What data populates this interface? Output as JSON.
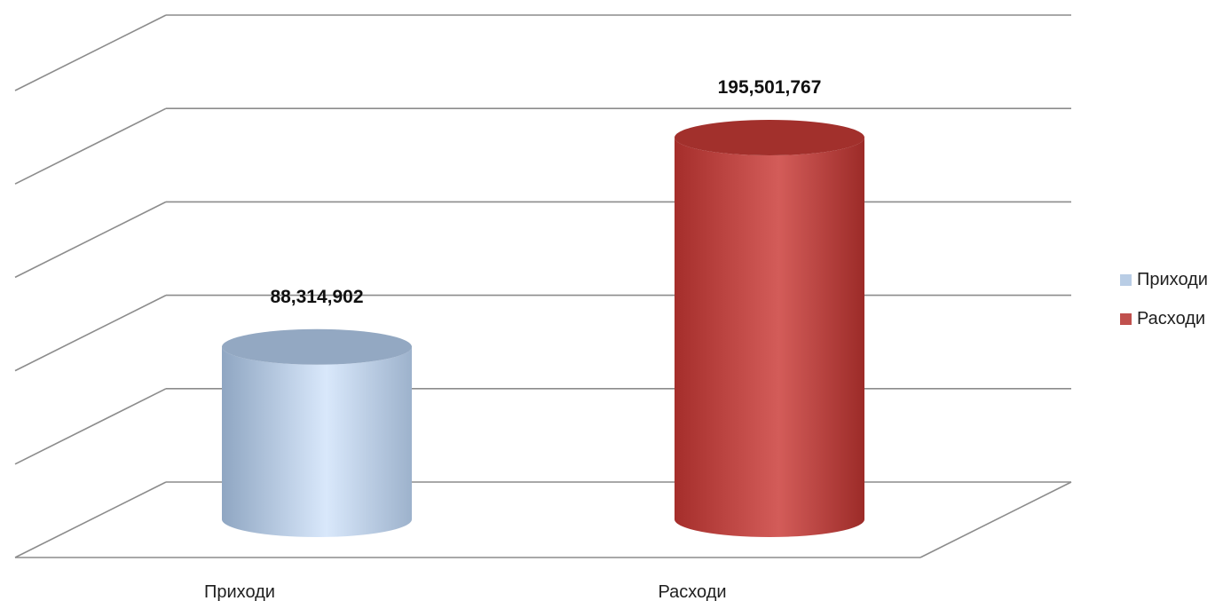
{
  "chart_data": {
    "type": "bar",
    "subtype": "3d-cylinder",
    "categories": [
      "Приходи",
      "Расходи"
    ],
    "values": [
      88314902,
      195501767
    ],
    "value_labels": [
      "88,314,902",
      "195,501,767"
    ],
    "series": [
      {
        "name": "Приходи",
        "values": [
          88314902,
          null
        ],
        "color": "#b9cde5"
      },
      {
        "name": "Расходи",
        "values": [
          null,
          195501767
        ],
        "color": "#c0504d"
      }
    ],
    "title": "",
    "xlabel": "",
    "ylabel": "",
    "ylim": [
      0,
      250000000
    ],
    "grid": true,
    "legend_position": "right"
  },
  "legend": {
    "items": [
      {
        "label": "Приходи",
        "color": "#b9cde5"
      },
      {
        "label": "Расходи",
        "color": "#c0504d"
      }
    ]
  }
}
